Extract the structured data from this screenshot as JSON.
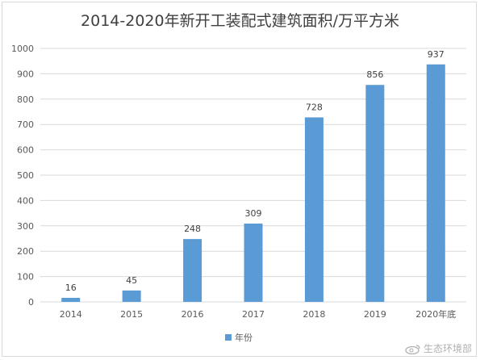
{
  "chart_data": {
    "type": "bar",
    "title": "2014-2020年新开工装配式建筑面积/万平方米",
    "categories": [
      "2014",
      "2015",
      "2016",
      "2017",
      "2018",
      "2019",
      "2020年底"
    ],
    "series": [
      {
        "name": "年份",
        "values": [
          16,
          45,
          248,
          309,
          728,
          856,
          937
        ]
      }
    ],
    "yticks": [
      "0",
      "100",
      "200",
      "300",
      "400",
      "500",
      "600",
      "700",
      "800",
      "900",
      "1000"
    ],
    "ylim": [
      0,
      1000
    ],
    "grid": true,
    "legend_position": "bottom",
    "data_labels": true,
    "colors": {
      "bar": "#5b9bd5",
      "grid": "#d9d9d9",
      "text": "#595959"
    }
  },
  "watermark": {
    "text": "生态环境部"
  }
}
